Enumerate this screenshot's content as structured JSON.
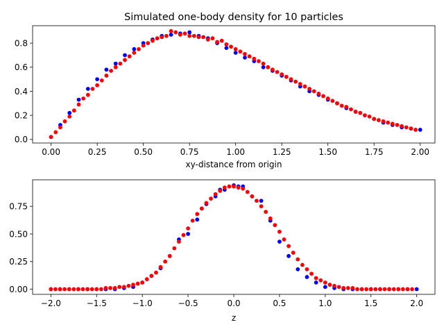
{
  "chart_data": [
    {
      "type": "scatter",
      "title": "Simulated one-body density for 10 particles",
      "xlabel": "xy-distance from origin",
      "ylabel": "",
      "xlim": [
        -0.1,
        2.08
      ],
      "ylim": [
        -0.03,
        0.945
      ],
      "xticks": [
        0.0,
        0.25,
        0.5,
        0.75,
        1.0,
        1.25,
        1.5,
        1.75,
        2.0
      ],
      "xtick_labels": [
        "0.00",
        "0.25",
        "0.50",
        "0.75",
        "1.00",
        "1.25",
        "1.50",
        "1.75",
        "2.00"
      ],
      "yticks": [
        0.0,
        0.2,
        0.4,
        0.6,
        0.8
      ],
      "ytick_labels": [
        "0.0",
        "0.2",
        "0.4",
        "0.6",
        "0.8"
      ],
      "grid": false,
      "legend": "none",
      "series": [
        {
          "color": "#0000ff",
          "x": [
            0.0,
            0.05,
            0.1,
            0.15,
            0.2,
            0.25,
            0.3,
            0.35,
            0.4,
            0.45,
            0.5,
            0.55,
            0.6,
            0.65,
            0.7,
            0.75,
            0.8,
            0.85,
            0.9,
            0.95,
            1.0,
            1.05,
            1.1,
            1.15,
            1.2,
            1.25,
            1.3,
            1.35,
            1.4,
            1.45,
            1.5,
            1.55,
            1.6,
            1.65,
            1.7,
            1.75,
            1.8,
            1.85,
            1.9,
            1.95,
            2.0
          ],
          "y": [
            0.02,
            0.12,
            0.22,
            0.33,
            0.42,
            0.5,
            0.58,
            0.63,
            0.7,
            0.75,
            0.8,
            0.83,
            0.86,
            0.87,
            0.88,
            0.89,
            0.86,
            0.84,
            0.8,
            0.76,
            0.72,
            0.68,
            0.65,
            0.6,
            0.57,
            0.53,
            0.49,
            0.44,
            0.4,
            0.37,
            0.33,
            0.3,
            0.26,
            0.23,
            0.2,
            0.17,
            0.14,
            0.12,
            0.1,
            0.09,
            0.08
          ]
        },
        {
          "color": "#ff0000",
          "x": [
            0.0,
            0.025,
            0.05,
            0.075,
            0.1,
            0.125,
            0.15,
            0.175,
            0.2,
            0.225,
            0.25,
            0.275,
            0.3,
            0.325,
            0.35,
            0.375,
            0.4,
            0.425,
            0.45,
            0.475,
            0.5,
            0.525,
            0.55,
            0.575,
            0.6,
            0.625,
            0.65,
            0.675,
            0.7,
            0.725,
            0.75,
            0.775,
            0.8,
            0.825,
            0.85,
            0.875,
            0.9,
            0.925,
            0.95,
            0.975,
            1.0,
            1.025,
            1.05,
            1.075,
            1.1,
            1.125,
            1.15,
            1.175,
            1.2,
            1.225,
            1.25,
            1.275,
            1.3,
            1.325,
            1.35,
            1.375,
            1.4,
            1.425,
            1.45,
            1.475,
            1.5,
            1.525,
            1.55,
            1.575,
            1.6,
            1.625,
            1.65,
            1.675,
            1.7,
            1.725,
            1.75,
            1.775,
            1.8,
            1.825,
            1.85,
            1.875,
            1.9,
            1.925,
            1.95,
            1.975
          ],
          "y": [
            0.02,
            0.06,
            0.1,
            0.15,
            0.19,
            0.24,
            0.29,
            0.34,
            0.37,
            0.42,
            0.45,
            0.49,
            0.53,
            0.57,
            0.6,
            0.63,
            0.66,
            0.69,
            0.72,
            0.75,
            0.78,
            0.8,
            0.82,
            0.84,
            0.85,
            0.86,
            0.9,
            0.89,
            0.87,
            0.88,
            0.86,
            0.86,
            0.85,
            0.85,
            0.83,
            0.84,
            0.81,
            0.82,
            0.79,
            0.77,
            0.75,
            0.73,
            0.71,
            0.69,
            0.67,
            0.65,
            0.63,
            0.6,
            0.58,
            0.56,
            0.54,
            0.52,
            0.5,
            0.48,
            0.46,
            0.44,
            0.42,
            0.4,
            0.38,
            0.36,
            0.34,
            0.32,
            0.3,
            0.28,
            0.27,
            0.25,
            0.23,
            0.22,
            0.2,
            0.19,
            0.17,
            0.16,
            0.15,
            0.14,
            0.13,
            0.12,
            0.11,
            0.1,
            0.09,
            0.08
          ]
        }
      ]
    },
    {
      "type": "scatter",
      "title": "",
      "xlabel": "z",
      "ylabel": "",
      "xlim": [
        -2.2,
        2.2
      ],
      "ylim": [
        -0.047,
        0.99
      ],
      "xticks": [
        -2.0,
        -1.5,
        -1.0,
        -0.5,
        0.0,
        0.5,
        1.0,
        1.5,
        2.0
      ],
      "xtick_labels": [
        "−2.0",
        "−1.5",
        "−1.0",
        "−0.5",
        "0.0",
        "0.5",
        "1.0",
        "1.5",
        "2.0"
      ],
      "yticks": [
        0.0,
        0.25,
        0.5,
        0.75
      ],
      "ytick_labels": [
        "0.00",
        "0.25",
        "0.50",
        "0.75"
      ],
      "grid": false,
      "legend": "none",
      "gaussian_sigma": 0.34,
      "series": [
        {
          "color": "#0000ff",
          "x": [
            -2.0,
            -1.9,
            -1.8,
            -1.7,
            -1.6,
            -1.5,
            -1.4,
            -1.3,
            -1.2,
            -1.1,
            -1.0,
            -0.9,
            -0.8,
            -0.7,
            -0.6,
            -0.5,
            -0.4,
            -0.35,
            -0.3,
            -0.2,
            -0.15,
            -0.1,
            0.0,
            0.05,
            0.1,
            0.2,
            0.3,
            0.4,
            0.5,
            0.6,
            0.7,
            0.8,
            0.9,
            1.0,
            1.1,
            1.2,
            1.3,
            1.4,
            1.5,
            1.6,
            1.7,
            1.8,
            1.9,
            2.0
          ],
          "y": [
            0.0,
            0.0,
            0.0,
            0.0,
            0.0,
            0.0,
            0.0,
            0.0,
            0.01,
            0.02,
            0.06,
            0.12,
            0.19,
            0.3,
            0.45,
            0.5,
            0.63,
            0.73,
            0.77,
            0.84,
            0.9,
            0.9,
            0.94,
            0.93,
            0.93,
            0.84,
            0.8,
            0.62,
            0.43,
            0.3,
            0.18,
            0.11,
            0.06,
            0.02,
            0.01,
            0.0,
            0.0,
            0.0,
            0.0,
            0.0,
            0.0,
            0.0,
            0.0,
            0.0
          ]
        },
        {
          "color": "#ff0000",
          "x": [
            -2.0,
            -1.95,
            -1.9,
            -1.85,
            -1.8,
            -1.75,
            -1.7,
            -1.65,
            -1.6,
            -1.55,
            -1.5,
            -1.45,
            -1.4,
            -1.35,
            -1.3,
            -1.25,
            -1.2,
            -1.15,
            -1.1,
            -1.05,
            -1.0,
            -0.95,
            -0.9,
            -0.85,
            -0.8,
            -0.75,
            -0.7,
            -0.65,
            -0.6,
            -0.55,
            -0.5,
            -0.45,
            -0.4,
            -0.35,
            -0.3,
            -0.25,
            -0.2,
            -0.15,
            -0.1,
            -0.05,
            0.0,
            0.05,
            0.1,
            0.15,
            0.2,
            0.25,
            0.3,
            0.35,
            0.4,
            0.45,
            0.5,
            0.55,
            0.6,
            0.65,
            0.7,
            0.75,
            0.8,
            0.85,
            0.9,
            0.95,
            1.0,
            1.05,
            1.1,
            1.15,
            1.2,
            1.25,
            1.3,
            1.35,
            1.4,
            1.45,
            1.5,
            1.55,
            1.6,
            1.65,
            1.7,
            1.75,
            1.8,
            1.85,
            1.9,
            1.95
          ],
          "y": [
            0.0,
            0.0,
            0.0,
            0.0,
            0.0,
            0.0,
            0.0,
            0.0,
            0.0,
            0.0,
            0.0,
            0.0,
            0.01,
            0.01,
            0.01,
            0.02,
            0.02,
            0.03,
            0.04,
            0.05,
            0.06,
            0.09,
            0.12,
            0.15,
            0.2,
            0.25,
            0.3,
            0.37,
            0.43,
            0.49,
            0.55,
            0.62,
            0.68,
            0.73,
            0.78,
            0.82,
            0.86,
            0.89,
            0.92,
            0.93,
            0.93,
            0.92,
            0.91,
            0.88,
            0.84,
            0.8,
            0.75,
            0.7,
            0.64,
            0.58,
            0.52,
            0.45,
            0.39,
            0.33,
            0.27,
            0.22,
            0.18,
            0.14,
            0.1,
            0.08,
            0.06,
            0.04,
            0.03,
            0.02,
            0.01,
            0.01,
            0.01,
            0.0,
            0.0,
            0.0,
            0.0,
            0.0,
            0.0,
            0.0,
            0.0,
            0.0,
            0.0,
            0.0,
            0.0,
            0.0
          ]
        }
      ]
    }
  ]
}
